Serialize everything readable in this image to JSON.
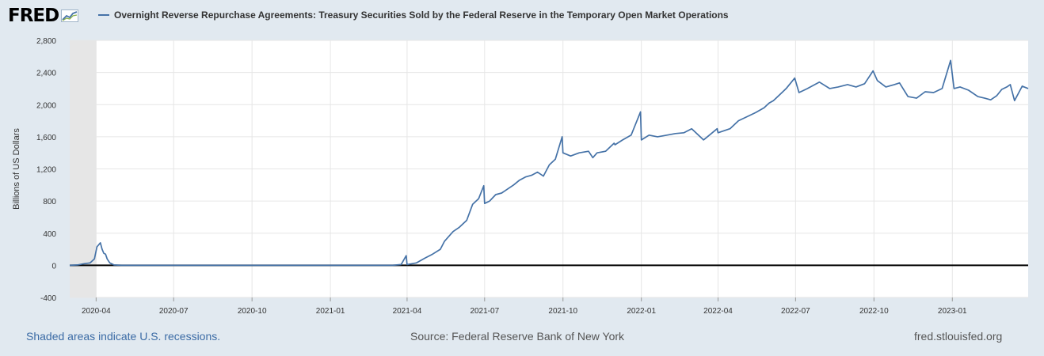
{
  "logo": {
    "text": "FRED",
    "icon": "line-chart-icon"
  },
  "footer": {
    "recession_note": "Shaded areas indicate U.S. recessions.",
    "source": "Source: Federal Reserve Bank of New York",
    "site": "fred.stlouisfed.org"
  },
  "colors": {
    "line": "#4572a7",
    "background": "#e1e9f0",
    "plot": "#ffffff",
    "recession": "#e6e6e6",
    "grid": "#e6e6e6"
  },
  "chart_data": {
    "type": "line",
    "title": "Overnight Reverse Repurchase Agreements: Treasury Securities Sold by the Federal Reserve in the Temporary Open Market Operations",
    "xlabel": "",
    "ylabel": "Billions of US Dollars",
    "ylim": [
      -400,
      2800
    ],
    "xlim": [
      "2020-03-01",
      "2023-03-31"
    ],
    "yticks": [
      -400,
      0,
      400,
      800,
      1200,
      1600,
      2000,
      2400,
      2800
    ],
    "ytick_labels": [
      "-400",
      "0",
      "400",
      "800",
      "1,200",
      "1,600",
      "2,000",
      "2,400",
      "2,800"
    ],
    "xticks": [
      "2020-04-01",
      "2020-07-01",
      "2020-10-01",
      "2021-01-01",
      "2021-04-01",
      "2021-07-01",
      "2021-10-01",
      "2022-01-01",
      "2022-04-01",
      "2022-07-01",
      "2022-10-01",
      "2023-01-01"
    ],
    "xtick_labels": [
      "2020-04",
      "2020-07",
      "2020-10",
      "2021-01",
      "2021-04",
      "2021-07",
      "2021-10",
      "2022-01",
      "2022-04",
      "2022-07",
      "2022-10",
      "2023-01"
    ],
    "grid": true,
    "legend": "top-left",
    "recessions": [
      [
        "2020-03-01",
        "2020-04-01"
      ]
    ],
    "series": [
      {
        "name": "Overnight Reverse Repurchase Agreements: Treasury Securities Sold by the Federal Reserve in the Temporary Open Market Operations",
        "points": [
          [
            "2020-03-01",
            0
          ],
          [
            "2020-03-10",
            5
          ],
          [
            "2020-03-18",
            20
          ],
          [
            "2020-03-25",
            30
          ],
          [
            "2020-03-30",
            80
          ],
          [
            "2020-04-02",
            230
          ],
          [
            "2020-04-06",
            280
          ],
          [
            "2020-04-08",
            200
          ],
          [
            "2020-04-10",
            150
          ],
          [
            "2020-04-12",
            140
          ],
          [
            "2020-04-14",
            80
          ],
          [
            "2020-04-17",
            30
          ],
          [
            "2020-04-22",
            5
          ],
          [
            "2020-05-01",
            0
          ],
          [
            "2020-07-01",
            0
          ],
          [
            "2020-10-01",
            0
          ],
          [
            "2021-01-01",
            0
          ],
          [
            "2021-03-15",
            0
          ],
          [
            "2021-03-25",
            10
          ],
          [
            "2021-03-31",
            120
          ],
          [
            "2021-04-01",
            10
          ],
          [
            "2021-04-12",
            30
          ],
          [
            "2021-04-22",
            90
          ],
          [
            "2021-05-01",
            140
          ],
          [
            "2021-05-10",
            200
          ],
          [
            "2021-05-15",
            300
          ],
          [
            "2021-05-25",
            420
          ],
          [
            "2021-06-01",
            470
          ],
          [
            "2021-06-10",
            560
          ],
          [
            "2021-06-17",
            760
          ],
          [
            "2021-06-24",
            830
          ],
          [
            "2021-06-30",
            990
          ],
          [
            "2021-07-01",
            770
          ],
          [
            "2021-07-07",
            800
          ],
          [
            "2021-07-14",
            880
          ],
          [
            "2021-07-21",
            900
          ],
          [
            "2021-07-28",
            950
          ],
          [
            "2021-08-04",
            1000
          ],
          [
            "2021-08-11",
            1060
          ],
          [
            "2021-08-18",
            1100
          ],
          [
            "2021-08-25",
            1120
          ],
          [
            "2021-09-01",
            1160
          ],
          [
            "2021-09-08",
            1110
          ],
          [
            "2021-09-15",
            1250
          ],
          [
            "2021-09-22",
            1320
          ],
          [
            "2021-09-30",
            1600
          ],
          [
            "2021-10-01",
            1400
          ],
          [
            "2021-10-10",
            1360
          ],
          [
            "2021-10-20",
            1400
          ],
          [
            "2021-10-31",
            1420
          ],
          [
            "2021-11-05",
            1340
          ],
          [
            "2021-11-10",
            1400
          ],
          [
            "2021-11-20",
            1420
          ],
          [
            "2021-11-30",
            1520
          ],
          [
            "2021-12-01",
            1500
          ],
          [
            "2021-12-10",
            1560
          ],
          [
            "2021-12-20",
            1620
          ],
          [
            "2021-12-31",
            1910
          ],
          [
            "2022-01-01",
            1560
          ],
          [
            "2022-01-10",
            1620
          ],
          [
            "2022-01-20",
            1600
          ],
          [
            "2022-01-31",
            1620
          ],
          [
            "2022-02-10",
            1640
          ],
          [
            "2022-02-20",
            1650
          ],
          [
            "2022-03-01",
            1700
          ],
          [
            "2022-03-15",
            1560
          ],
          [
            "2022-03-31",
            1700
          ],
          [
            "2022-04-01",
            1650
          ],
          [
            "2022-04-15",
            1700
          ],
          [
            "2022-04-25",
            1800
          ],
          [
            "2022-05-05",
            1850
          ],
          [
            "2022-05-15",
            1900
          ],
          [
            "2022-05-25",
            1960
          ],
          [
            "2022-05-31",
            2020
          ],
          [
            "2022-06-05",
            2050
          ],
          [
            "2022-06-15",
            2150
          ],
          [
            "2022-06-20",
            2200
          ],
          [
            "2022-06-30",
            2330
          ],
          [
            "2022-07-05",
            2150
          ],
          [
            "2022-07-15",
            2200
          ],
          [
            "2022-07-29",
            2280
          ],
          [
            "2022-08-10",
            2200
          ],
          [
            "2022-08-20",
            2220
          ],
          [
            "2022-08-31",
            2250
          ],
          [
            "2022-09-10",
            2220
          ],
          [
            "2022-09-20",
            2260
          ],
          [
            "2022-09-30",
            2420
          ],
          [
            "2022-10-05",
            2300
          ],
          [
            "2022-10-15",
            2220
          ],
          [
            "2022-10-25",
            2250
          ],
          [
            "2022-10-31",
            2270
          ],
          [
            "2022-11-10",
            2100
          ],
          [
            "2022-11-20",
            2080
          ],
          [
            "2022-11-30",
            2160
          ],
          [
            "2022-12-10",
            2150
          ],
          [
            "2022-12-20",
            2200
          ],
          [
            "2022-12-30",
            2550
          ],
          [
            "2023-01-03",
            2200
          ],
          [
            "2023-01-10",
            2220
          ],
          [
            "2023-01-20",
            2180
          ],
          [
            "2023-01-31",
            2100
          ],
          [
            "2023-02-08",
            2080
          ],
          [
            "2023-02-15",
            2060
          ],
          [
            "2023-02-22",
            2110
          ],
          [
            "2023-02-28",
            2190
          ],
          [
            "2023-03-06",
            2220
          ],
          [
            "2023-03-10",
            2250
          ],
          [
            "2023-03-15",
            2050
          ],
          [
            "2023-03-20",
            2150
          ],
          [
            "2023-03-24",
            2230
          ],
          [
            "2023-03-31",
            2200
          ]
        ]
      }
    ]
  }
}
